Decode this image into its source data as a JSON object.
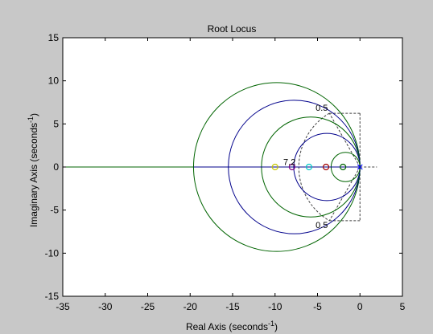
{
  "chart_data": {
    "type": "line",
    "title": "Root Locus",
    "xlabel": "Real Axis (seconds",
    "ylabel": "Imaginary Axis (seconds",
    "label_exponent": "-1",
    "xlim": [
      -35,
      5
    ],
    "ylim": [
      -15,
      15
    ],
    "xticks": [
      "-35",
      "-30",
      "-25",
      "-20",
      "-15",
      "-10",
      "-5",
      "0",
      "5"
    ],
    "yticks": [
      "15",
      "10",
      "5",
      "0",
      "-5",
      "-10",
      "-15"
    ],
    "grid": false,
    "annotations": [
      {
        "text": "0.5",
        "x": -4.5,
        "y": 6.9
      },
      {
        "text": "0.5",
        "x": -4.5,
        "y": -6.7
      },
      {
        "text": "7.2",
        "x": -8.3,
        "y": 0.6
      }
    ],
    "damping_lines": {
      "zeta": 0.5,
      "wn": 7.2,
      "color": "#404040"
    },
    "series": [
      {
        "kind": "circle",
        "color": "#006400",
        "center": [
          -9.8,
          0
        ],
        "radius": 9.8
      },
      {
        "kind": "circle",
        "color": "#00008b",
        "center": [
          -7.75,
          0
        ],
        "radius": 7.75
      },
      {
        "kind": "circle",
        "color": "#006400",
        "center": [
          -5.8,
          0
        ],
        "radius": 5.8
      },
      {
        "kind": "circle",
        "color": "#00008b",
        "center": [
          -3.9,
          0
        ],
        "radius": 3.9
      },
      {
        "kind": "circle",
        "color": "#006400",
        "center": [
          -1.7,
          0
        ],
        "radius": 1.7
      },
      {
        "kind": "segment",
        "color": "#006400",
        "x": [
          -35,
          -19.6
        ],
        "y": [
          0,
          0
        ]
      },
      {
        "kind": "segment",
        "color": "#00008b",
        "x": [
          -19.6,
          0
        ],
        "y": [
          0,
          0
        ]
      }
    ],
    "zeros": [
      {
        "x": -10,
        "y": 0,
        "color": "#c8c800"
      },
      {
        "x": -8,
        "y": 0,
        "color": "#800080"
      },
      {
        "x": -6,
        "y": 0,
        "color": "#00c8c8"
      },
      {
        "x": -4,
        "y": 0,
        "color": "#a00000"
      },
      {
        "x": -2,
        "y": 0,
        "color": "#006400"
      }
    ],
    "poles": [
      {
        "x": 0,
        "y": 0,
        "color": "#0000ff"
      }
    ]
  }
}
